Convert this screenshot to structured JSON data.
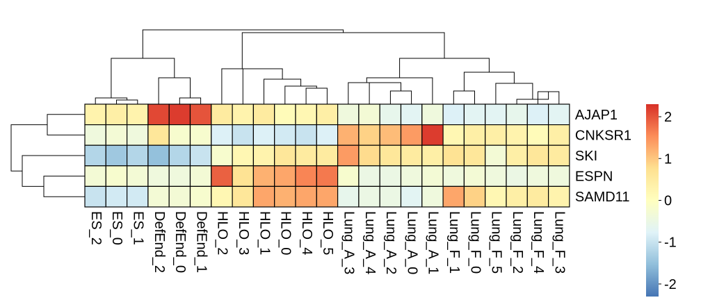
{
  "chart_data": {
    "type": "heatmap",
    "columns": [
      "ES_2",
      "ES_0",
      "ES_1",
      "DefEnd_2",
      "DefEnd_0",
      "DefEnd_1",
      "HLO_2",
      "HLO_3",
      "HLO_1",
      "HLO_0",
      "HLO_4",
      "HLO_5",
      "Lung_A_3",
      "Lung_A_4",
      "Lung_A_2",
      "Lung_A_0",
      "Lung_A_1",
      "Lung_F_1",
      "Lung_F_0",
      "Lung_F_5",
      "Lung_F_2",
      "Lung_F_4",
      "Lung_F_3"
    ],
    "rows": [
      "AJAP1",
      "CNKSR1",
      "SKI",
      "ESPN",
      "SAMD11"
    ],
    "values": [
      [
        0.3,
        0.4,
        0.3,
        2.1,
        2.2,
        2.0,
        0.5,
        0.3,
        0.5,
        0.1,
        0.2,
        0.4,
        -0.4,
        -0.3,
        -0.6,
        -0.7,
        -0.4,
        -0.8,
        -0.7,
        -0.7,
        -0.6,
        -0.8,
        -0.7
      ],
      [
        -0.4,
        -0.3,
        -0.4,
        0.6,
        -0.2,
        -0.2,
        -0.8,
        -1.0,
        -0.8,
        -0.9,
        -1.0,
        -0.8,
        1.2,
        0.9,
        1.1,
        1.4,
        2.2,
        0.2,
        0.4,
        0.4,
        0.3,
        0.1,
        0.4
      ],
      [
        -1.2,
        -1.4,
        -1.2,
        -1.5,
        -1.2,
        -1.0,
        -0.2,
        0.2,
        0.3,
        0.6,
        0.5,
        0.5,
        1.4,
        0.8,
        0.6,
        0.5,
        0.4,
        0.7,
        0.6,
        -0.3,
        0.4,
        0.6,
        0.5
      ],
      [
        -0.3,
        -0.2,
        -0.3,
        -0.4,
        -0.4,
        -0.3,
        1.9,
        0.7,
        1.2,
        1.3,
        1.6,
        1.7,
        -0.2,
        -0.5,
        -0.5,
        -0.4,
        -0.3,
        -0.4,
        -0.3,
        -0.4,
        -0.5,
        -0.4,
        -0.4
      ],
      [
        -1.0,
        -0.9,
        -0.9,
        -0.3,
        -0.3,
        -0.2,
        0.2,
        0.6,
        1.3,
        1.2,
        1.3,
        1.3,
        -0.6,
        -0.5,
        -0.5,
        -0.7,
        -0.4,
        1.3,
        0.9,
        0.2,
        0.4,
        0.5,
        0.3
      ]
    ],
    "colorbar": {
      "ticks": [
        2,
        1,
        0,
        -1,
        -2
      ],
      "tick_labels": [
        "2",
        "1",
        "0",
        "-1",
        "-2"
      ],
      "range": [
        -2.3,
        2.3
      ],
      "colors": [
        "#4575b4",
        "#91bfdb",
        "#e0f3f8",
        "#ffffbf",
        "#fee090",
        "#fc8d59",
        "#d73027"
      ]
    }
  }
}
